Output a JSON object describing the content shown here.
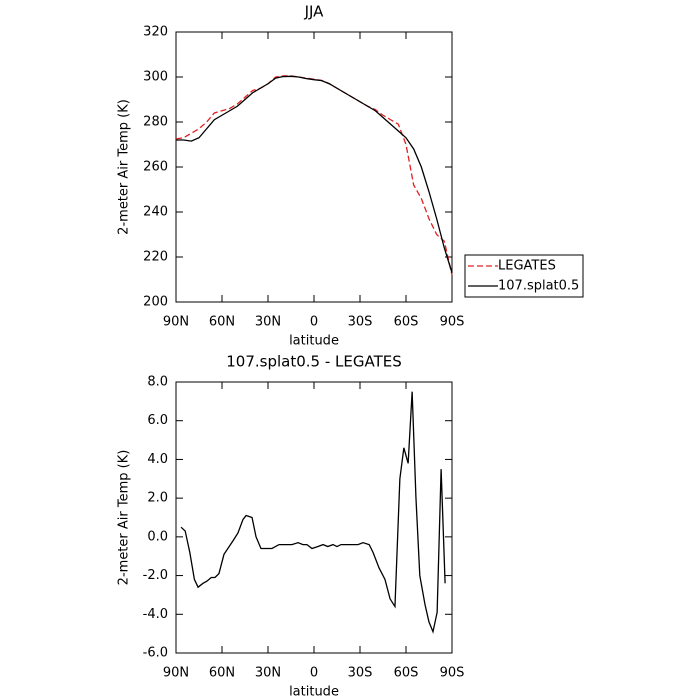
{
  "chart_data": [
    {
      "type": "line",
      "title": "JJA",
      "xlabel": "latitude",
      "ylabel": "2-meter Air Temp (K)",
      "xlim": [
        90,
        -90
      ],
      "xticks": [
        {
          "value": 90,
          "label": "90N"
        },
        {
          "value": 60,
          "label": "60N"
        },
        {
          "value": 30,
          "label": "30N"
        },
        0,
        {
          "value": -30,
          "label": "30S"
        },
        {
          "value": -60,
          "label": "60S"
        },
        {
          "value": -90,
          "label": "90S"
        }
      ],
      "ylim": [
        200,
        320
      ],
      "yticks": [
        200,
        220,
        240,
        260,
        280,
        300,
        320
      ],
      "legend": "outside-right",
      "x": [
        90,
        85,
        80,
        75,
        70,
        65,
        60,
        55,
        50,
        45,
        40,
        35,
        30,
        25,
        20,
        15,
        10,
        5,
        0,
        -5,
        -10,
        -15,
        -20,
        -25,
        -30,
        -35,
        -40,
        -45,
        -50,
        -55,
        -60,
        -65,
        -70,
        -75,
        -80,
        -85,
        -90
      ],
      "series": [
        {
          "name": "LEGATES",
          "color": "#e02020",
          "line_style": "dashed",
          "values": [
            272.5,
            273,
            275,
            277,
            280,
            284,
            285,
            286,
            288,
            291,
            294,
            295,
            297,
            300,
            300.5,
            300.5,
            300,
            299.5,
            299,
            298.5,
            297,
            295,
            293,
            291,
            289,
            287,
            285.5,
            283,
            281,
            279,
            270,
            252,
            246,
            237,
            230,
            227,
            212
          ]
        },
        {
          "name": "107.splat0.5",
          "color": "#000000",
          "line_style": "solid",
          "values": [
            272,
            272,
            271.5,
            273,
            277,
            281,
            283,
            285,
            287,
            290,
            293,
            295,
            297,
            299.5,
            300.2,
            300.3,
            300,
            299.3,
            298.8,
            298.4,
            297,
            295,
            293,
            291,
            289,
            287,
            285,
            282,
            279,
            276,
            273,
            268,
            260,
            249,
            237,
            224,
            213
          ]
        }
      ]
    },
    {
      "type": "line",
      "title": "107.splat0.5 - LEGATES",
      "xlabel": "latitude",
      "ylabel": "2-meter Air Temp (K)",
      "xlim": [
        90,
        -90
      ],
      "xticks": [
        {
          "value": 90,
          "label": "90N"
        },
        {
          "value": 60,
          "label": "60N"
        },
        {
          "value": 30,
          "label": "30N"
        },
        0,
        {
          "value": -30,
          "label": "30S"
        },
        {
          "value": -60,
          "label": "60S"
        },
        {
          "value": -90,
          "label": "90S"
        }
      ],
      "ylim": [
        -6,
        8
      ],
      "yticks": [
        {
          "value": -6,
          "label": "-6.0"
        },
        {
          "value": -4,
          "label": "-4.0"
        },
        {
          "value": -2,
          "label": "-2.0"
        },
        {
          "value": 0,
          "label": "0.0"
        },
        {
          "value": 2,
          "label": "2.0"
        },
        {
          "value": 4,
          "label": "4.0"
        },
        {
          "value": 6,
          "label": "6.0"
        },
        {
          "value": 8,
          "label": "8.0"
        }
      ],
      "color": "#000000",
      "x": [
        86.7,
        84,
        81,
        78,
        75.6,
        72.4,
        70,
        67,
        64.6,
        62,
        58.7,
        52.8,
        49.6,
        46.3,
        44.3,
        40.4,
        37.8,
        34.6,
        27.4,
        22.8,
        14.4,
        10.4,
        7.2,
        4.6,
        1.3,
        -2.6,
        -5.9,
        -9,
        -12.4,
        -15,
        -17.6,
        -20.9,
        -28.7,
        -32,
        -36,
        -38.5,
        -42.4,
        -46.3,
        -49.6,
        -52.8,
        -56,
        -58.6,
        -61.4,
        -64,
        -66.5,
        -69,
        -72.4,
        -75,
        -77.6,
        -80.3,
        -82.9,
        -85.5
      ],
      "values": [
        0.5,
        0.3,
        -0.8,
        -2.2,
        -2.6,
        -2.4,
        -2.3,
        -2.1,
        -2.1,
        -1.9,
        -0.9,
        -0.2,
        0.2,
        0.9,
        1.1,
        1.0,
        0,
        -0.6,
        -0.6,
        -0.4,
        -0.4,
        -0.3,
        -0.4,
        -0.4,
        -0.6,
        -0.5,
        -0.4,
        -0.5,
        -0.4,
        -0.5,
        -0.4,
        -0.4,
        -0.4,
        -0.3,
        -0.4,
        -0.8,
        -1.6,
        -2.2,
        -3.2,
        -3.6,
        3.0,
        4.6,
        3.8,
        7.5,
        2.0,
        -2.0,
        -3.5,
        -4.4,
        -4.9,
        -3.9,
        3.5,
        -2.4
      ]
    }
  ]
}
